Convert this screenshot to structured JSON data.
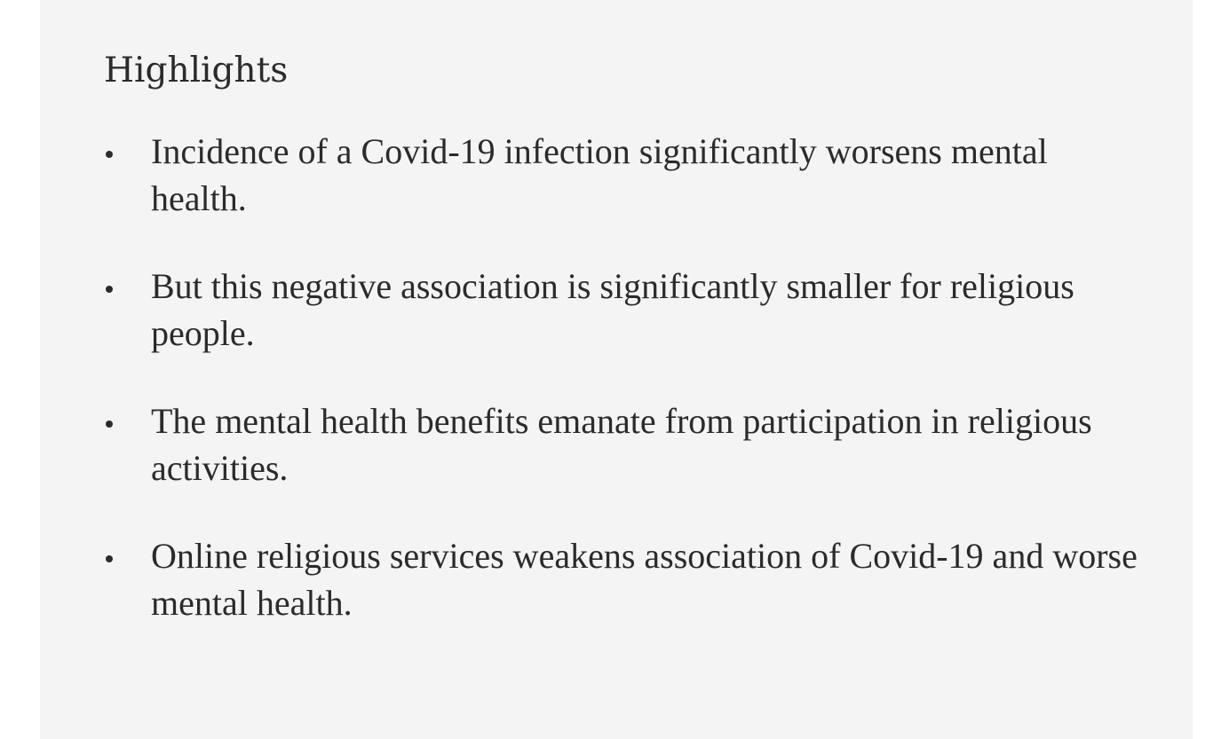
{
  "colors": {
    "page_bg": "#ffffff",
    "panel_bg": "#f4f4f4",
    "text": "#2b2b2b"
  },
  "highlights": {
    "title": "Highlights",
    "items": [
      {
        "lines": [
          "Incidence of a Covid-19 infection significantly worsens mental",
          "health."
        ]
      },
      {
        "lines": [
          "But this negative association is significantly smaller for religious",
          "people."
        ]
      },
      {
        "lines": [
          "The mental health benefits emanate from participation in religious",
          "activities."
        ]
      },
      {
        "lines": [
          "Online religious services weakens association of Covid-19 and worse",
          "mental health."
        ]
      }
    ]
  }
}
